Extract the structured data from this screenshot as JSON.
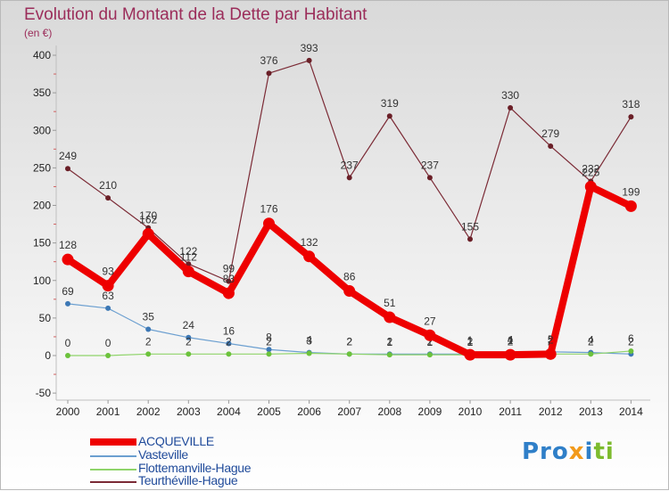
{
  "title": "Evolution du Montant de la Dette par Habitant",
  "unit": "(en €)",
  "brand": {
    "part1": "Pro",
    "part2": "x",
    "part3": "i",
    "part4": "ti"
  },
  "chart_data": {
    "type": "line",
    "title": "Evolution du Montant de la Dette par Habitant",
    "ylabel": "(en €)",
    "xlabel": "",
    "ylim": [
      -50,
      400
    ],
    "yticks": [
      -50,
      0,
      50,
      100,
      150,
      200,
      250,
      300,
      350,
      400
    ],
    "categories": [
      "2000",
      "2001",
      "2002",
      "2003",
      "2004",
      "2005",
      "2006",
      "2007",
      "2008",
      "2009",
      "2010",
      "2011",
      "2012",
      "2013",
      "2014"
    ],
    "series": [
      {
        "name": "Teurthéville-Hague",
        "color": "#7b2a35",
        "marker": "#6a1f27",
        "values": [
          249,
          210,
          170,
          122,
          99,
          376,
          393,
          237,
          319,
          237,
          155,
          330,
          279,
          232,
          318
        ]
      },
      {
        "name": "Vasteville",
        "color": "#6b9fd0",
        "marker": "#3d78b5",
        "values": [
          69,
          63,
          35,
          24,
          16,
          8,
          4,
          2,
          2,
          2,
          2,
          4,
          5,
          4,
          2
        ]
      },
      {
        "name": "Flottemanville-Hague",
        "color": "#8fd46a",
        "marker": "#6cc23c",
        "values": [
          0,
          0,
          2,
          2,
          2,
          2,
          3,
          2,
          1,
          1,
          1,
          2,
          2,
          2,
          6
        ]
      },
      {
        "name": "ACQUEVILLE",
        "color": "#ee0000",
        "marker": "#ee0000",
        "values": [
          128,
          93,
          162,
          112,
          83,
          176,
          132,
          86,
          51,
          27,
          1,
          1,
          2,
          225,
          199
        ]
      }
    ],
    "labels": [
      {
        "series": "Teurthéville-Hague",
        "labels": [
          "249",
          "210",
          "170",
          "122",
          "99",
          "376",
          "393",
          "237",
          "319",
          "237",
          "155",
          "330",
          "279",
          "232",
          "318"
        ]
      },
      {
        "series": "Vasteville",
        "labels": [
          "69",
          "63",
          "35",
          "24",
          "16",
          "8",
          "4",
          "2",
          "2",
          "2",
          "2",
          "4",
          "5",
          "4",
          "2"
        ]
      },
      {
        "series": "Flottemanville-Hague",
        "labels": [
          "0",
          "0",
          "2",
          "2",
          "2",
          "2",
          "3",
          "2",
          "1",
          "1",
          "1",
          "2",
          "2",
          "2",
          "6"
        ]
      },
      {
        "series": "ACQUEVILLE",
        "labels": [
          "128",
          "93",
          "162",
          "112",
          "83",
          "176",
          "132",
          "86",
          "51",
          "27",
          "1",
          "1",
          "2",
          "225",
          "199"
        ]
      }
    ]
  },
  "legend": [
    {
      "name": "ACQUEVILLE",
      "color": "#ee0000",
      "thickness": "thick"
    },
    {
      "name": "Vasteville",
      "color": "#6b9fd0",
      "thickness": "thin"
    },
    {
      "name": "Flottemanville-Hague",
      "color": "#8fd46a",
      "thickness": "thin"
    },
    {
      "name": "Teurthéville-Hague",
      "color": "#7b2a35",
      "thickness": "thin"
    }
  ]
}
